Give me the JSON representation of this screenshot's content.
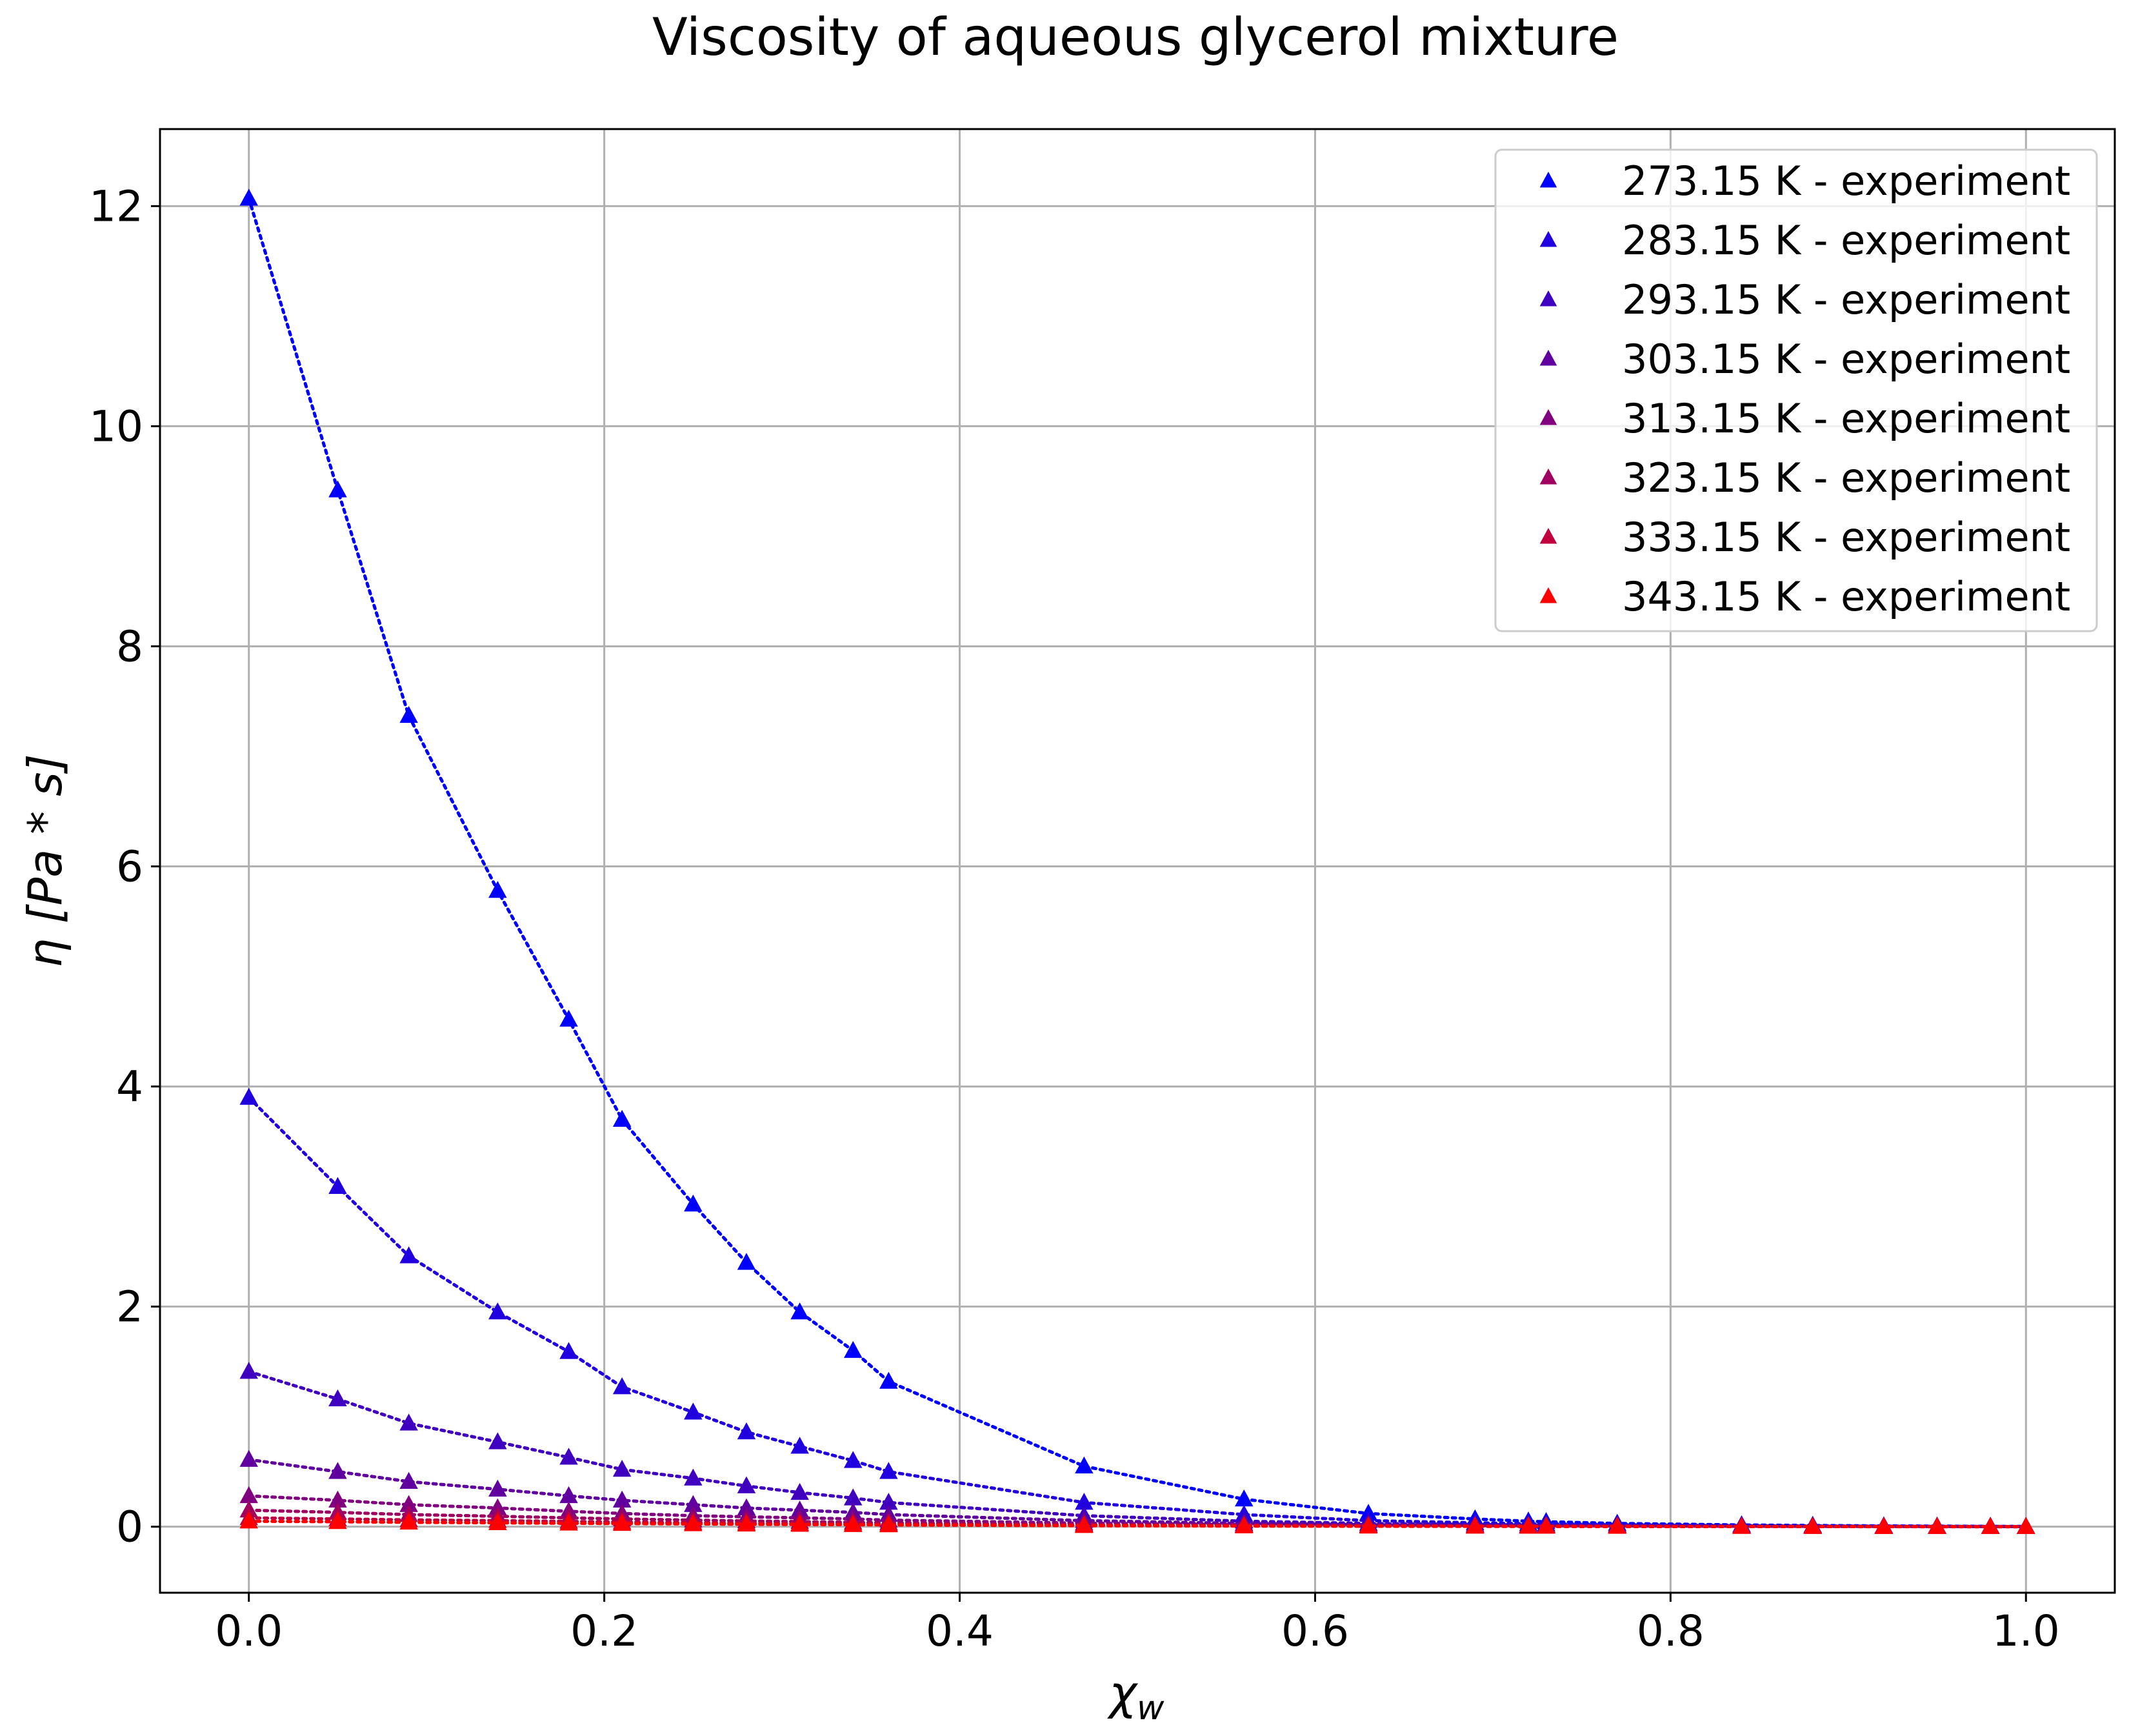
{
  "chart_data": {
    "type": "scatter",
    "title": "Viscosity of aqueous glycerol mixture",
    "xlabel": "χ",
    "xlabel_sub": "w",
    "ylabel": "η  [Pa * s]",
    "xlim": [
      -0.05,
      1.05
    ],
    "ylim": [
      -0.6,
      12.7
    ],
    "xticks": [
      0.0,
      0.2,
      0.4,
      0.6,
      0.8,
      1.0
    ],
    "xtick_labels": [
      "0.0",
      "0.2",
      "0.4",
      "0.6",
      "0.8",
      "1.0"
    ],
    "yticks": [
      0,
      2,
      4,
      6,
      8,
      10,
      12
    ],
    "ytick_labels": [
      "0",
      "2",
      "4",
      "6",
      "8",
      "10",
      "12"
    ],
    "grid": true,
    "legend_position": "top-right",
    "marker": "triangle",
    "line_style": "dotted",
    "x": [
      0.0,
      0.05,
      0.09,
      0.14,
      0.18,
      0.21,
      0.25,
      0.28,
      0.31,
      0.34,
      0.36,
      0.47,
      0.56,
      0.63,
      0.69,
      0.72,
      0.73,
      0.77,
      0.84,
      0.88,
      0.92,
      0.95,
      0.98,
      1.0
    ],
    "series": [
      {
        "name": "273.15 K - experiment",
        "color": "#0000ff",
        "values": [
          12.07,
          9.42,
          7.37,
          5.78,
          4.61,
          3.7,
          2.93,
          2.4,
          1.95,
          1.6,
          1.32,
          0.55,
          0.25,
          0.12,
          0.07,
          0.05,
          0.045,
          0.03,
          0.016,
          0.011,
          0.007,
          0.005,
          0.003,
          0.002
        ]
      },
      {
        "name": "283.15 K - experiment",
        "color": "#2000df",
        "values": [
          3.9,
          3.09,
          2.46,
          1.95,
          1.59,
          1.27,
          1.04,
          0.86,
          0.73,
          0.6,
          0.5,
          0.22,
          0.11,
          0.055,
          0.035,
          0.028,
          0.025,
          0.018,
          0.01,
          0.007,
          0.005,
          0.003,
          0.002,
          0.0013
        ]
      },
      {
        "name": "293.15 K - experiment",
        "color": "#4000bf",
        "values": [
          1.41,
          1.16,
          0.94,
          0.77,
          0.63,
          0.52,
          0.44,
          0.37,
          0.31,
          0.26,
          0.22,
          0.1,
          0.05,
          0.03,
          0.02,
          0.016,
          0.014,
          0.011,
          0.006,
          0.004,
          0.003,
          0.002,
          0.0014,
          0.001
        ]
      },
      {
        "name": "303.15 K - experiment",
        "color": "#60009f",
        "values": [
          0.61,
          0.5,
          0.41,
          0.34,
          0.28,
          0.24,
          0.2,
          0.17,
          0.15,
          0.13,
          0.11,
          0.055,
          0.03,
          0.018,
          0.012,
          0.01,
          0.009,
          0.007,
          0.004,
          0.003,
          0.002,
          0.0014,
          0.001,
          0.0008
        ]
      },
      {
        "name": "313.15 K - experiment",
        "color": "#80007f",
        "values": [
          0.28,
          0.24,
          0.2,
          0.17,
          0.14,
          0.12,
          0.1,
          0.09,
          0.08,
          0.07,
          0.06,
          0.032,
          0.019,
          0.012,
          0.008,
          0.007,
          0.006,
          0.005,
          0.003,
          0.002,
          0.0015,
          0.0011,
          0.0008,
          0.0007
        ]
      },
      {
        "name": "323.15 K - experiment",
        "color": "#a0005f",
        "values": [
          0.15,
          0.13,
          0.11,
          0.095,
          0.08,
          0.07,
          0.06,
          0.052,
          0.046,
          0.04,
          0.036,
          0.02,
          0.012,
          0.008,
          0.006,
          0.005,
          0.0045,
          0.0035,
          0.0022,
          0.0016,
          0.0012,
          0.0009,
          0.0007,
          0.0005
        ]
      },
      {
        "name": "333.15 K - experiment",
        "color": "#c0003f",
        "values": [
          0.08,
          0.07,
          0.062,
          0.055,
          0.048,
          0.042,
          0.037,
          0.033,
          0.029,
          0.026,
          0.023,
          0.013,
          0.008,
          0.0055,
          0.004,
          0.0035,
          0.0032,
          0.0025,
          0.0016,
          0.0012,
          0.0009,
          0.0007,
          0.0005,
          0.0004
        ]
      },
      {
        "name": "343.15 K - experiment",
        "color": "#ff0000",
        "values": [
          0.05,
          0.045,
          0.04,
          0.035,
          0.031,
          0.028,
          0.025,
          0.022,
          0.02,
          0.018,
          0.016,
          0.009,
          0.006,
          0.004,
          0.003,
          0.0026,
          0.0024,
          0.0019,
          0.0012,
          0.0009,
          0.0007,
          0.0005,
          0.0004,
          0.0003
        ]
      }
    ]
  }
}
